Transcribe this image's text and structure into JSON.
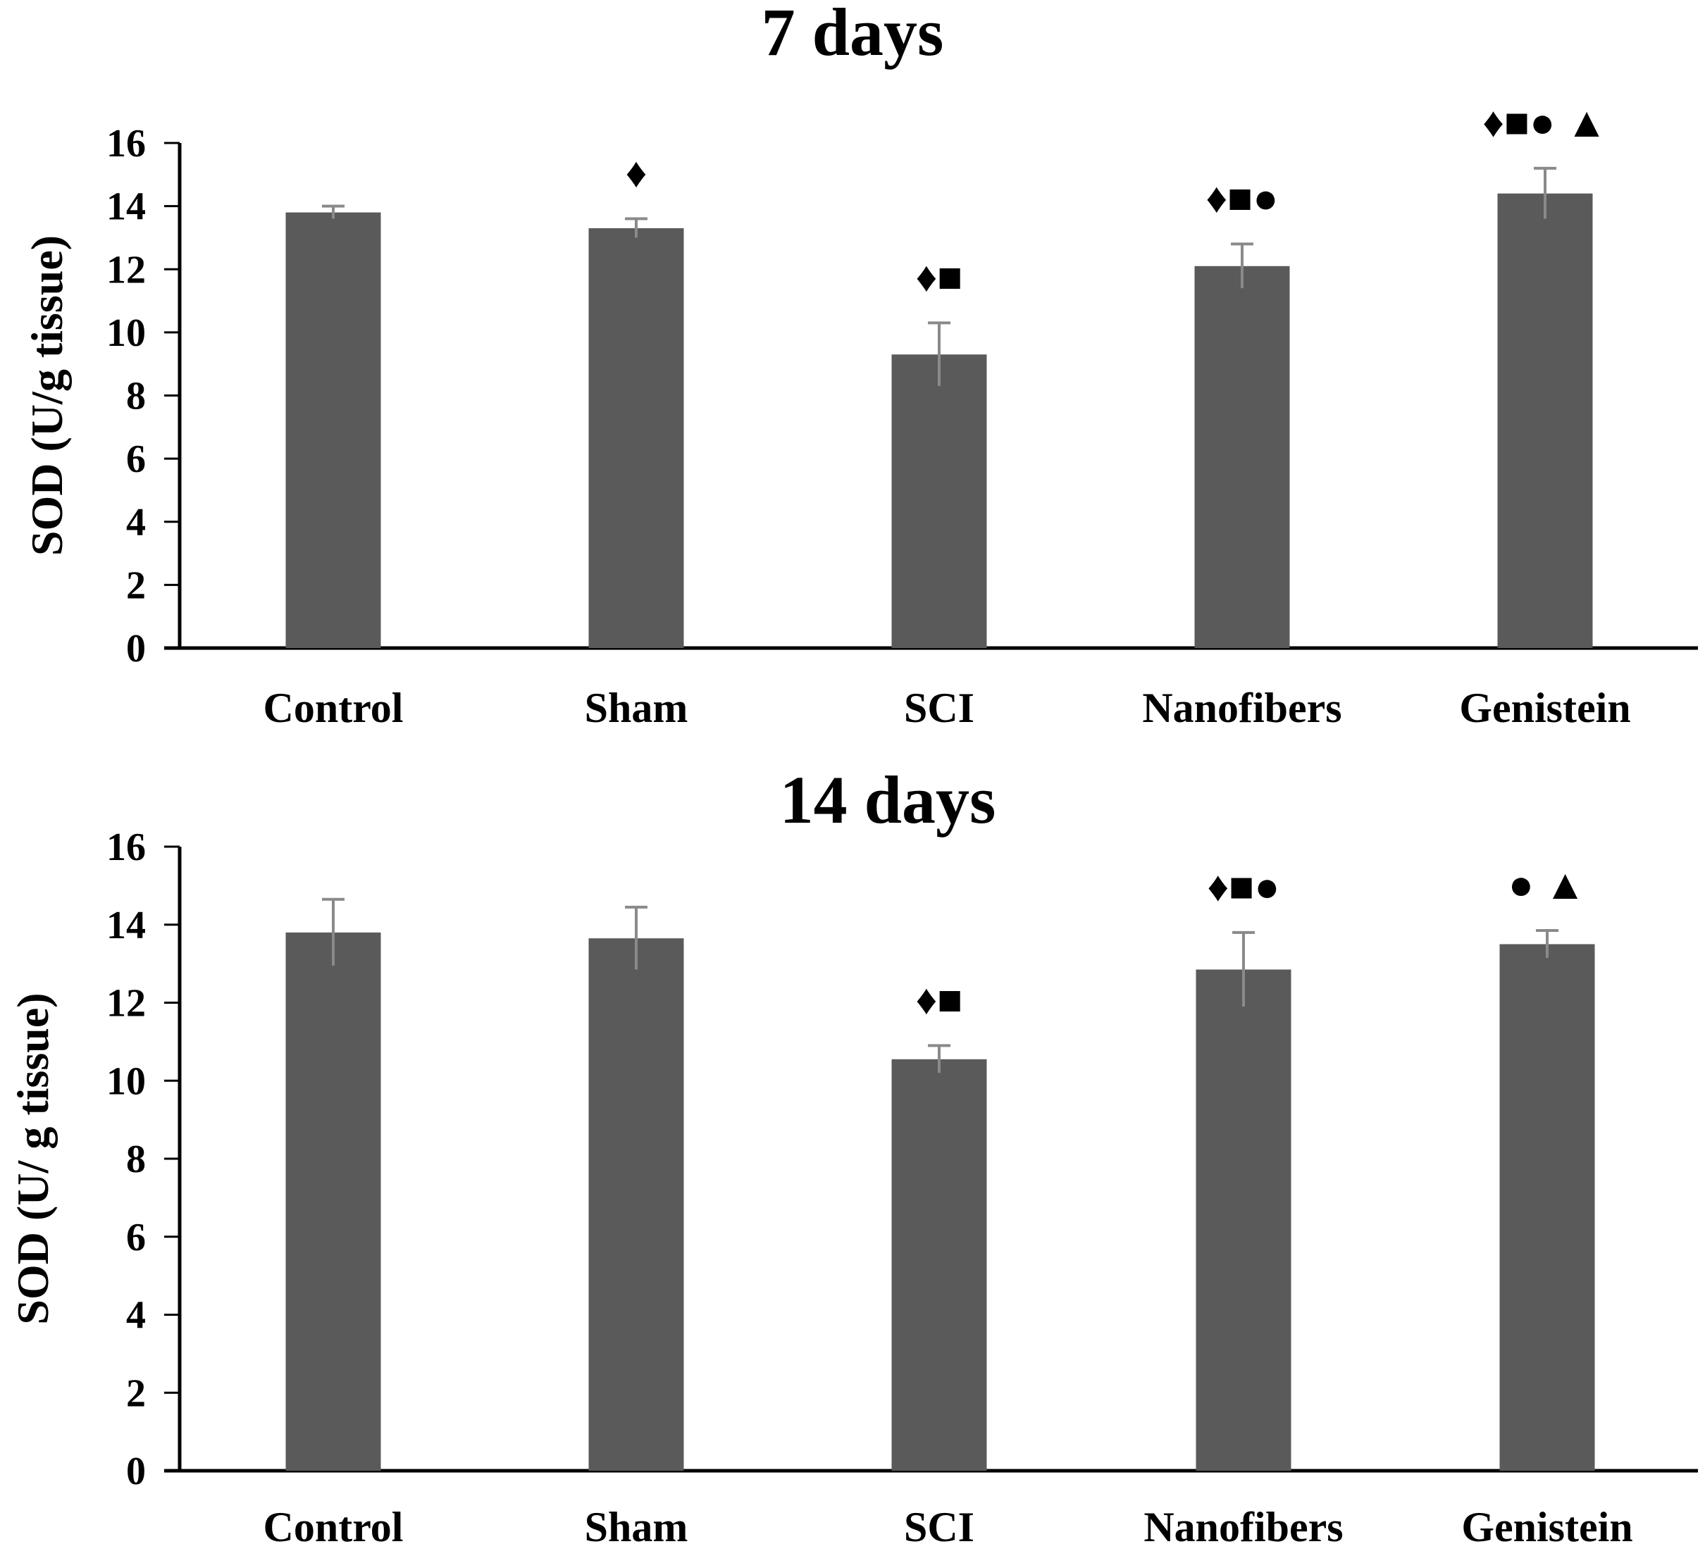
{
  "colors": {
    "bar": "#5a5a5a",
    "error_bar": "#8a8a8a",
    "axis": "#000000"
  },
  "chart_data": [
    {
      "type": "bar",
      "title": "7 days",
      "xlabel": "",
      "ylabel": "SOD (U/g tissue)",
      "ylim": [
        0,
        16
      ],
      "yticks": [
        0,
        2,
        4,
        6,
        8,
        10,
        12,
        14,
        16
      ],
      "categories": [
        "Control",
        "Sham",
        "SCI",
        "Nanofibers",
        "Genistein"
      ],
      "values": [
        13.8,
        13.3,
        9.3,
        12.1,
        14.4
      ],
      "errors": [
        0.2,
        0.3,
        1.0,
        0.7,
        0.8
      ],
      "significance": [
        "",
        "♦",
        "♦■",
        "♦■●",
        "♦■● ▲"
      ]
    },
    {
      "type": "bar",
      "title": "14 days",
      "xlabel": "",
      "ylabel": "SOD (U/ g tissue)",
      "ylim": [
        0,
        16
      ],
      "yticks": [
        0,
        2,
        4,
        6,
        8,
        10,
        12,
        14,
        16
      ],
      "categories": [
        "Control",
        "Sham",
        "SCI",
        "Nanofibers",
        "Genistein"
      ],
      "values": [
        13.8,
        13.65,
        10.55,
        12.85,
        13.5
      ],
      "errors": [
        0.85,
        0.8,
        0.35,
        0.95,
        0.35
      ],
      "significance": [
        "",
        "",
        "♦■",
        "♦■●",
        "● ▲"
      ]
    }
  ]
}
